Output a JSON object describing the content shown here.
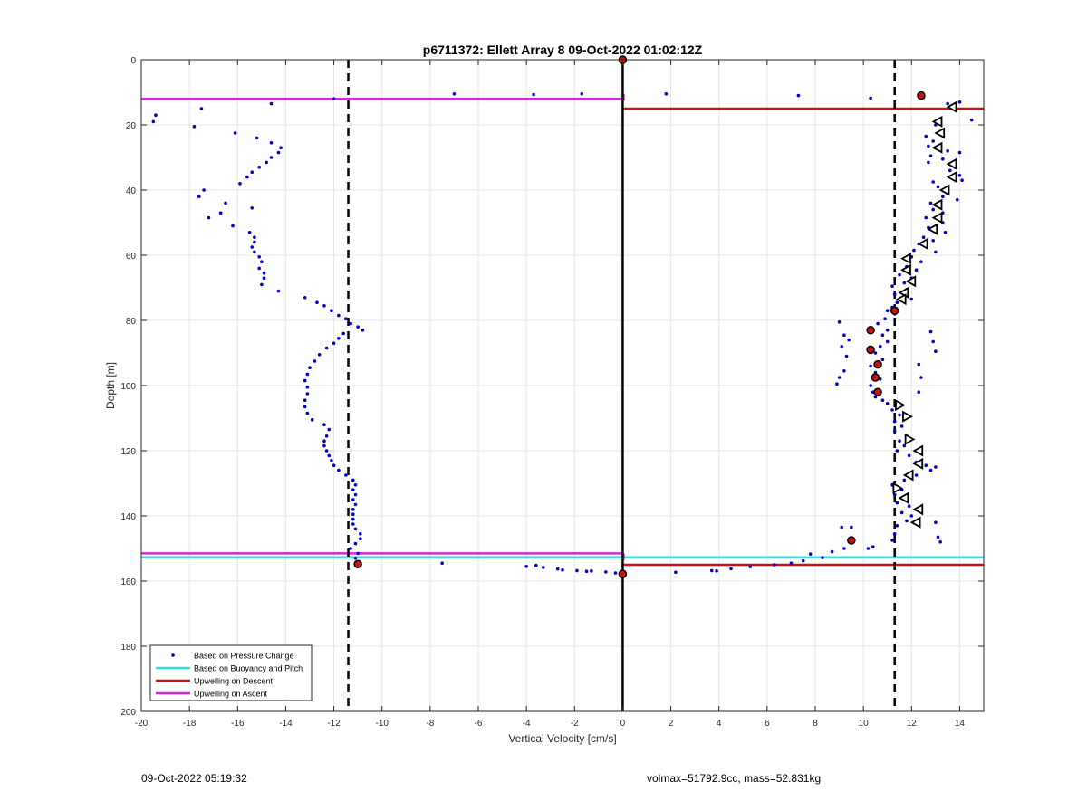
{
  "footer": {
    "timestamp": "09-Oct-2022 05:19:32",
    "vol_mass": "volmax=51792.9cc, mass=52.831kg"
  },
  "chart_data": {
    "type": "scatter",
    "title": "p6711372: Ellett Array 8 09-Oct-2022 01:02:12Z",
    "xlabel": "Vertical Velocity [cm/s]",
    "ylabel": "Depth [m]",
    "xlim": [
      -20,
      15
    ],
    "ylim": [
      0,
      200
    ],
    "y_reversed": true,
    "grid": true,
    "x_ticks": [
      -20,
      -18,
      -16,
      -14,
      -12,
      -10,
      -8,
      -6,
      -4,
      -2,
      0,
      2,
      4,
      6,
      8,
      10,
      12,
      14
    ],
    "y_ticks": [
      0,
      20,
      40,
      60,
      80,
      100,
      120,
      140,
      160,
      180,
      200
    ],
    "legend_position": "bottom-left",
    "legend": [
      {
        "label": "Based on Pressure Change",
        "style": "dot",
        "color": "#0000cc"
      },
      {
        "label": "Based on Buoyancy and Pitch",
        "style": "line",
        "color": "#33e0e0"
      },
      {
        "label": "Upwelling on Descent",
        "style": "line",
        "color": "#cc1111"
      },
      {
        "label": "Upwelling on Ascent",
        "style": "line",
        "color": "#dd22dd"
      }
    ],
    "vertical_lines": [
      {
        "x": -11.4,
        "style": "dashed",
        "color": "#000000"
      },
      {
        "x": 11.3,
        "style": "dashed",
        "color": "#000000"
      },
      {
        "x": 0,
        "style": "solid",
        "color": "#000000"
      }
    ],
    "horizontal_segments": [
      {
        "name": "Upwelling on Ascent",
        "y": 12,
        "x_from": -20,
        "x_to": 0,
        "color": "#dd22dd"
      },
      {
        "name": "Upwelling on Descent",
        "y": 15,
        "x_from": 0,
        "x_to": 15,
        "color": "#cc1111"
      },
      {
        "name": "Upwelling on Ascent",
        "y": 151.5,
        "x_from": -20,
        "x_to": 0,
        "color": "#dd22dd"
      },
      {
        "name": "Based on Buoyancy and Pitch",
        "y": 152.7,
        "x_from": -20,
        "x_to": 15,
        "color": "#33e0e0"
      },
      {
        "name": "Upwelling on Descent",
        "y": 155,
        "x_from": 0,
        "x_to": 15,
        "color": "#cc1111"
      }
    ],
    "series": [
      {
        "name": "Based on Pressure Change",
        "color": "#0000cc",
        "points": [
          [
            -19.4,
            17
          ],
          [
            -19.5,
            19
          ],
          [
            -17.5,
            15
          ],
          [
            -17.8,
            20.5
          ],
          [
            -16.1,
            22.5
          ],
          [
            -15.2,
            24
          ],
          [
            -14.6,
            25.5
          ],
          [
            -14.2,
            27
          ],
          [
            -14.3,
            28.5
          ],
          [
            -14.6,
            30
          ],
          [
            -14.8,
            31.5
          ],
          [
            -15.1,
            33
          ],
          [
            -15.4,
            34.5
          ],
          [
            -15.6,
            36
          ],
          [
            -15.9,
            38
          ],
          [
            -17.4,
            40
          ],
          [
            -17.6,
            42
          ],
          [
            -16.5,
            44
          ],
          [
            -15.4,
            45.5
          ],
          [
            -16.7,
            47
          ],
          [
            -17.2,
            48.5
          ],
          [
            -16.2,
            51
          ],
          [
            -15.5,
            53
          ],
          [
            -15.3,
            54.5
          ],
          [
            -15.3,
            56
          ],
          [
            -15.4,
            57.5
          ],
          [
            -15.3,
            59
          ],
          [
            -15.1,
            60.5
          ],
          [
            -15.0,
            62
          ],
          [
            -15.1,
            64
          ],
          [
            -14.9,
            65.5
          ],
          [
            -14.9,
            67
          ],
          [
            -15.0,
            69
          ],
          [
            -14.3,
            71
          ],
          [
            -13.2,
            73
          ],
          [
            -12.7,
            74.5
          ],
          [
            -12.4,
            75.5
          ],
          [
            -12.1,
            77
          ],
          [
            -11.8,
            78.5
          ],
          [
            -11.5,
            79.5
          ],
          [
            -11.3,
            81
          ],
          [
            -11.0,
            82
          ],
          [
            -10.8,
            83
          ],
          [
            -11.6,
            84
          ],
          [
            -11.8,
            85.5
          ],
          [
            -12.0,
            87
          ],
          [
            -12.3,
            88.5
          ],
          [
            -12.6,
            90.5
          ],
          [
            -12.8,
            92.5
          ],
          [
            -13.0,
            94.5
          ],
          [
            -13.1,
            96.5
          ],
          [
            -13.2,
            98.5
          ],
          [
            -13.1,
            100.5
          ],
          [
            -13.1,
            102.5
          ],
          [
            -13.2,
            104.5
          ],
          [
            -13.2,
            106.5
          ],
          [
            -13.1,
            108.5
          ],
          [
            -12.9,
            110.5
          ],
          [
            -12.4,
            112
          ],
          [
            -12.2,
            113.5
          ],
          [
            -12.3,
            115.5
          ],
          [
            -12.4,
            117
          ],
          [
            -12.4,
            118.5
          ],
          [
            -12.3,
            120
          ],
          [
            -12.2,
            121.5
          ],
          [
            -12.1,
            123
          ],
          [
            -12.0,
            124.5
          ],
          [
            -11.8,
            126
          ],
          [
            -11.5,
            127.5
          ],
          [
            -11.2,
            129
          ],
          [
            -11.1,
            130.5
          ],
          [
            -11.2,
            132
          ],
          [
            -11.1,
            133.5
          ],
          [
            -11.2,
            135
          ],
          [
            -11.1,
            136.5
          ],
          [
            -11.2,
            138
          ],
          [
            -11.2,
            139.5
          ],
          [
            -11.2,
            141
          ],
          [
            -11.2,
            142.5
          ],
          [
            -11.1,
            144
          ],
          [
            -10.9,
            145.5
          ],
          [
            -10.9,
            147
          ],
          [
            -11.1,
            148.5
          ],
          [
            -11.3,
            150
          ],
          [
            -11.0,
            151.5
          ],
          [
            -11.1,
            153
          ],
          [
            -12.0,
            12
          ],
          [
            -14.6,
            13.5
          ],
          [
            -7.0,
            10.5
          ],
          [
            -3.7,
            10.7
          ],
          [
            -1.7,
            10.5
          ],
          [
            1.8,
            10.5
          ],
          [
            7.3,
            11
          ],
          [
            10.3,
            11.8
          ],
          [
            -7.5,
            154.5
          ],
          [
            -4.0,
            155.5
          ],
          [
            -3.6,
            155.2
          ],
          [
            -3.3,
            155.8
          ],
          [
            -2.7,
            156.3
          ],
          [
            -2.5,
            156.6
          ],
          [
            -1.9,
            156.8
          ],
          [
            -1.5,
            157
          ],
          [
            -1.3,
            156.9
          ],
          [
            -0.7,
            157.2
          ],
          [
            -0.3,
            157.5
          ],
          [
            2.2,
            157.3
          ],
          [
            3.7,
            156.8
          ],
          [
            3.9,
            156.9
          ],
          [
            4.5,
            156.2
          ],
          [
            5.3,
            155.6
          ],
          [
            6.3,
            155
          ],
          [
            7.0,
            154.5
          ],
          [
            7.5,
            153.8
          ],
          [
            8.3,
            152.8
          ],
          [
            7.8,
            151.7
          ],
          [
            8.7,
            151
          ],
          [
            9.2,
            150
          ],
          [
            9.1,
            143.5
          ],
          [
            9.5,
            143.5
          ],
          [
            10.2,
            150
          ],
          [
            10.4,
            149.5
          ],
          [
            12.5,
            11.5
          ],
          [
            13.5,
            13.5
          ],
          [
            14.0,
            13
          ],
          [
            14.5,
            18.5
          ],
          [
            13.0,
            20
          ],
          [
            13.2,
            22
          ],
          [
            12.6,
            23.5
          ],
          [
            12.9,
            25
          ],
          [
            12.7,
            26.5
          ],
          [
            13.5,
            28
          ],
          [
            14.0,
            28.5
          ],
          [
            12.8,
            29.5
          ],
          [
            13.3,
            30.5
          ],
          [
            12.7,
            31.5
          ],
          [
            13.8,
            33
          ],
          [
            13.6,
            34
          ],
          [
            14.0,
            35.5
          ],
          [
            14.1,
            37
          ],
          [
            12.9,
            37.5
          ],
          [
            13.1,
            39
          ],
          [
            13.5,
            41
          ],
          [
            13.3,
            42
          ],
          [
            13.9,
            43
          ],
          [
            12.8,
            44
          ],
          [
            12.9,
            46
          ],
          [
            13.3,
            47
          ],
          [
            12.6,
            48.5
          ],
          [
            13.3,
            50
          ],
          [
            12.7,
            51.5
          ],
          [
            13.4,
            53
          ],
          [
            12.5,
            54.5
          ],
          [
            12.9,
            55.5
          ],
          [
            12.3,
            56.5
          ],
          [
            12.1,
            58.5
          ],
          [
            13.0,
            59
          ],
          [
            12.0,
            60.5
          ],
          [
            12.4,
            62
          ],
          [
            11.8,
            63.5
          ],
          [
            12.2,
            64.5
          ],
          [
            11.5,
            66
          ],
          [
            12.0,
            67
          ],
          [
            11.7,
            68.5
          ],
          [
            11.2,
            69.5
          ],
          [
            11.8,
            70.5
          ],
          [
            11.3,
            72
          ],
          [
            11.7,
            73
          ],
          [
            11.4,
            74.5
          ],
          [
            12.0,
            73.5
          ],
          [
            11.2,
            76
          ],
          [
            11.0,
            77
          ],
          [
            11.3,
            78
          ],
          [
            10.9,
            79.5
          ],
          [
            10.6,
            81
          ],
          [
            11.0,
            83
          ],
          [
            10.8,
            84.5
          ],
          [
            9.0,
            80.5
          ],
          [
            9.2,
            84.5
          ],
          [
            9.4,
            86
          ],
          [
            9.1,
            88
          ],
          [
            9.3,
            91
          ],
          [
            9.2,
            95.5
          ],
          [
            9.0,
            97.5
          ],
          [
            8.9,
            99.5
          ],
          [
            11.0,
            86.5
          ],
          [
            10.7,
            88
          ],
          [
            10.5,
            90
          ],
          [
            10.8,
            92
          ],
          [
            10.3,
            94
          ],
          [
            10.5,
            96
          ],
          [
            10.7,
            98
          ],
          [
            10.3,
            100
          ],
          [
            10.4,
            102
          ],
          [
            10.5,
            103.5
          ],
          [
            10.8,
            104.5
          ],
          [
            11.0,
            105.5
          ],
          [
            11.2,
            107.5
          ],
          [
            11.5,
            109
          ],
          [
            11.3,
            111
          ],
          [
            11.6,
            112.5
          ],
          [
            11.3,
            114
          ],
          [
            11.8,
            115.5
          ],
          [
            11.5,
            117
          ],
          [
            11.7,
            118.5
          ],
          [
            11.4,
            120
          ],
          [
            11.9,
            121.5
          ],
          [
            12.2,
            123.5
          ],
          [
            12.6,
            124.5
          ],
          [
            13.0,
            125
          ],
          [
            12.8,
            126
          ],
          [
            12.2,
            127.5
          ],
          [
            11.7,
            129
          ],
          [
            11.2,
            130.5
          ],
          [
            11.6,
            132
          ],
          [
            11.3,
            133.5
          ],
          [
            11.7,
            134.5
          ],
          [
            11.4,
            136
          ],
          [
            11.9,
            137
          ],
          [
            11.6,
            139
          ],
          [
            12.0,
            140
          ],
          [
            11.8,
            141.5
          ],
          [
            11.4,
            143
          ],
          [
            11.3,
            145.5
          ],
          [
            11.2,
            147.5
          ],
          [
            13.0,
            142
          ],
          [
            13.1,
            146.5
          ],
          [
            13.2,
            148
          ],
          [
            12.3,
            93.5
          ],
          [
            12.4,
            97.5
          ],
          [
            12.3,
            102
          ],
          [
            13.0,
            89.5
          ],
          [
            12.8,
            83.5
          ],
          [
            12.9,
            86.5
          ]
        ]
      },
      {
        "name": "descent_markers",
        "color": "#000000",
        "marker": "triangle-left",
        "points": [
          [
            13.7,
            14.5
          ],
          [
            13.1,
            19
          ],
          [
            13.2,
            22.5
          ],
          [
            13.1,
            27
          ],
          [
            13.7,
            32
          ],
          [
            13.7,
            36
          ],
          [
            13.4,
            40
          ],
          [
            13.1,
            44.5
          ],
          [
            13.1,
            48.5
          ],
          [
            12.9,
            52
          ],
          [
            12.5,
            56.5
          ],
          [
            11.8,
            61
          ],
          [
            11.8,
            64.5
          ],
          [
            12.0,
            68
          ],
          [
            11.7,
            71.5
          ],
          [
            11.6,
            73.5
          ],
          [
            12.3,
            120
          ],
          [
            12.3,
            124
          ],
          [
            11.9,
            127.5
          ],
          [
            11.7,
            134.5
          ],
          [
            12.3,
            138
          ],
          [
            12.2,
            142
          ]
        ]
      },
      {
        "name": "ascent_markers",
        "color": "#000000",
        "marker": "triangle-right",
        "points": [
          [
            11.5,
            106
          ],
          [
            11.8,
            109.5
          ],
          [
            11.9,
            116.5
          ],
          [
            11.4,
            131.5
          ]
        ]
      },
      {
        "name": "red_markers",
        "color": "#cc1111",
        "marker": "filled-dot",
        "points": [
          [
            0,
            0
          ],
          [
            12.4,
            11
          ],
          [
            11.3,
            77
          ],
          [
            10.3,
            83
          ],
          [
            10.3,
            89
          ],
          [
            10.6,
            93.5
          ],
          [
            10.5,
            97.5
          ],
          [
            10.6,
            102
          ],
          [
            9.5,
            147.5
          ],
          [
            -11.0,
            154.8
          ],
          [
            0,
            157.8
          ]
        ]
      }
    ]
  }
}
